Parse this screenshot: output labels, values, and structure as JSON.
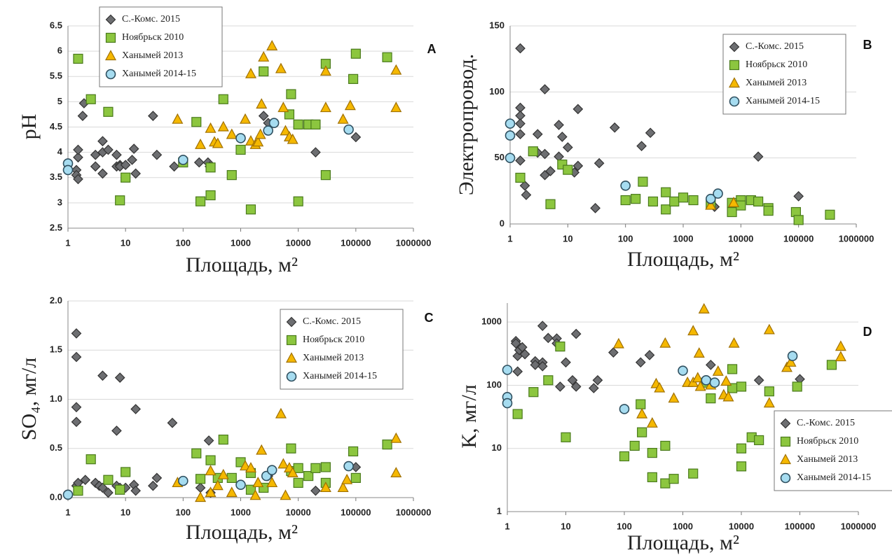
{
  "chart_data": [
    {
      "type": "scatter",
      "panel_label": "A",
      "x_label": "Площадь, м²",
      "y_label": "pH",
      "log_x": true,
      "grid": true,
      "legend": "upper left",
      "xlim": [
        1,
        1000000
      ],
      "xticks": [
        1,
        10,
        100,
        1000,
        10000,
        100000,
        1000000
      ],
      "ylim": [
        2.5,
        6.5
      ],
      "yticks": [
        2.5,
        3,
        3.5,
        4,
        4.5,
        5,
        5.5,
        6,
        6.5
      ],
      "series": [
        {
          "name": "С.-Комс. 2015",
          "color": "#6d6e71",
          "marker": "diamond",
          "x": [
            1.4,
            1.4,
            1.5,
            1.5,
            1.5,
            1.8,
            1.9,
            3,
            3,
            4,
            4,
            4,
            5,
            7,
            7,
            8,
            8,
            10,
            13,
            14,
            15,
            30,
            35,
            70,
            190,
            270,
            290,
            2500,
            3000,
            20000,
            100000
          ],
          "values": [
            3.65,
            3.55,
            3.47,
            3.9,
            4.05,
            4.72,
            4.97,
            3.95,
            3.72,
            4.0,
            4.22,
            3.58,
            4.05,
            3.72,
            3.95,
            3.75,
            3.72,
            3.75,
            3.85,
            4.07,
            3.58,
            4.72,
            3.95,
            3.72,
            3.8,
            3.8,
            3.72,
            4.72,
            4.58,
            4.0,
            4.3
          ]
        },
        {
          "name": "Ноябрьск 2010",
          "color": "#8cc63f",
          "marker": "square",
          "x": [
            1.5,
            2.5,
            5,
            8,
            10,
            100,
            170,
            200,
            300,
            300,
            500,
            700,
            1000,
            1500,
            2500,
            7500,
            7000,
            10000,
            10000,
            15000,
            20000,
            30000,
            30000,
            90000,
            100000,
            350000
          ],
          "values": [
            5.85,
            5.05,
            4.8,
            3.05,
            3.5,
            3.8,
            4.6,
            3.03,
            3.7,
            3.15,
            5.05,
            3.55,
            4.05,
            2.87,
            5.6,
            5.15,
            4.75,
            4.55,
            3.03,
            4.55,
            4.55,
            5.75,
            3.55,
            5.45,
            5.95,
            5.88
          ]
        },
        {
          "name": "Ханымей 2013",
          "color": "#f5b800",
          "marker": "triangle",
          "x": [
            80,
            200,
            300,
            350,
            400,
            500,
            700,
            1200,
            1500,
            1500,
            1800,
            2000,
            2200,
            2300,
            2500,
            3500,
            5000,
            5500,
            6000,
            7000,
            8000,
            30000,
            30000,
            60000,
            80000,
            500000,
            500000
          ],
          "values": [
            4.65,
            4.15,
            4.47,
            4.2,
            4.17,
            4.5,
            4.35,
            4.65,
            5.55,
            4.22,
            4.15,
            4.2,
            4.35,
            4.95,
            5.88,
            6.1,
            5.65,
            4.88,
            4.42,
            4.3,
            4.25,
            5.6,
            4.88,
            4.65,
            4.92,
            5.62,
            4.88
          ]
        },
        {
          "name": "Ханымей 2014-15",
          "color": "#a6dcf0",
          "marker": "circle",
          "x": [
            1,
            1,
            100,
            1000,
            3000,
            3800,
            75000
          ],
          "values": [
            3.78,
            3.65,
            3.85,
            4.28,
            4.43,
            4.58,
            4.45
          ]
        }
      ]
    },
    {
      "type": "scatter",
      "panel_label": "B",
      "x_label": "Площадь, м²",
      "y_label": "Электропровод.",
      "log_x": true,
      "grid": true,
      "legend": "upper right",
      "xlim": [
        1,
        1000000
      ],
      "xticks": [
        1,
        10,
        100,
        1000,
        10000,
        100000,
        1000000
      ],
      "ylim": [
        0,
        150
      ],
      "yticks": [
        0,
        50,
        100,
        150
      ],
      "series": [
        {
          "name": "С.-Комс. 2015",
          "color": "#6d6e71",
          "marker": "diamond",
          "x": [
            1.5,
            1.5,
            1.5,
            1.5,
            1.5,
            1.5,
            1.8,
            1.9,
            3,
            3,
            4,
            4,
            4,
            5,
            7,
            7,
            8,
            10,
            13,
            15,
            15,
            30,
            35,
            65,
            190,
            270,
            3500,
            20000,
            100000
          ],
          "values": [
            133,
            88,
            82,
            76,
            68,
            48,
            29,
            22,
            68,
            54,
            102,
            53,
            37,
            40,
            75,
            51,
            66,
            58,
            39,
            87,
            44,
            12,
            46,
            73,
            59,
            69,
            13,
            51,
            21
          ]
        },
        {
          "name": "Ноябрьск 2010",
          "color": "#8cc63f",
          "marker": "square",
          "x": [
            1.5,
            2.5,
            5,
            8,
            10,
            100,
            150,
            200,
            300,
            500,
            500,
            700,
            1000,
            1500,
            3000,
            7000,
            7000,
            10000,
            10000,
            15000,
            20000,
            30000,
            30000,
            90000,
            100000,
            350000
          ],
          "values": [
            35,
            55,
            15,
            45,
            41,
            18,
            19,
            32,
            17,
            24,
            11,
            17,
            20,
            18,
            15,
            16,
            9,
            18,
            14,
            18,
            17,
            12,
            10,
            9,
            3,
            7
          ]
        },
        {
          "name": "Ханымей 2013",
          "color": "#f5b800",
          "marker": "triangle",
          "x": [
            3000,
            7500
          ],
          "values": [
            14,
            16
          ]
        },
        {
          "name": "Ханымей 2014-15",
          "color": "#a6dcf0",
          "marker": "circle",
          "x": [
            1,
            1,
            1,
            100,
            3000,
            4000
          ],
          "values": [
            76,
            67,
            50,
            29,
            19,
            23
          ]
        }
      ]
    },
    {
      "type": "scatter",
      "panel_label": "C",
      "x_label": "Площадь, м²",
      "y_label": "SO₄, мг/л",
      "log_x": true,
      "grid": true,
      "legend": "upper right",
      "xlim": [
        1,
        1000000
      ],
      "xticks": [
        1,
        10,
        100,
        1000,
        10000,
        100000,
        1000000
      ],
      "ylim": [
        0,
        2
      ],
      "yticks": [
        {
          "value": 0,
          "label": "0.0"
        },
        0.5,
        {
          "value": 1,
          "label": "1.0"
        },
        1.5,
        {
          "value": 2,
          "label": "2.0"
        }
      ],
      "series": [
        {
          "name": "С.-Комс. 2015",
          "color": "#6d6e71",
          "marker": "diamond",
          "x": [
            1.4,
            1.4,
            1.4,
            1.4,
            1.4,
            1.5,
            2,
            3,
            3.5,
            4,
            4,
            5,
            7,
            7,
            8,
            8,
            10,
            14,
            15,
            15,
            30,
            35,
            65,
            200,
            280,
            300,
            3000,
            20000,
            100000
          ],
          "values": [
            1.67,
            1.43,
            0.92,
            0.77,
            0.12,
            0.15,
            0.18,
            0.15,
            0.12,
            1.24,
            0.1,
            0.05,
            0.68,
            0.12,
            1.22,
            0.1,
            0.1,
            0.13,
            0.9,
            0.07,
            0.12,
            0.2,
            0.76,
            0.1,
            0.58,
            0.05,
            0.22,
            0.07,
            0.31
          ]
        },
        {
          "name": "Ноябрьск 2010",
          "color": "#8cc63f",
          "marker": "square",
          "x": [
            1.5,
            2.5,
            5,
            8,
            10,
            170,
            200,
            300,
            400,
            500,
            700,
            1000,
            1500,
            1500,
            2500,
            7500,
            7500,
            10000,
            10000,
            15000,
            20000,
            30000,
            30000,
            90000,
            100000,
            350000
          ],
          "values": [
            0.07,
            0.39,
            0.18,
            0.08,
            0.26,
            0.45,
            0.19,
            0.38,
            0.2,
            0.59,
            0.2,
            0.36,
            0.08,
            0.25,
            0.1,
            0.5,
            0.27,
            0.3,
            0.15,
            0.22,
            0.3,
            0.31,
            0.15,
            0.47,
            0.2,
            0.54
          ]
        },
        {
          "name": "Ханымей 2013",
          "color": "#f5b800",
          "marker": "triangle",
          "x": [
            80,
            200,
            300,
            300,
            400,
            500,
            700,
            1200,
            1500,
            1800,
            2000,
            2300,
            3500,
            5000,
            5500,
            6000,
            7000,
            8000,
            30000,
            60000,
            70000,
            500000,
            500000
          ],
          "values": [
            0.15,
            0.0,
            0.27,
            0.05,
            0.12,
            0.23,
            0.05,
            0.32,
            0.3,
            0.02,
            0.15,
            0.48,
            0.15,
            0.85,
            0.34,
            0.02,
            0.3,
            0.25,
            0.1,
            0.1,
            0.18,
            0.6,
            0.25
          ]
        },
        {
          "name": "Ханымей 2014-15",
          "color": "#a6dcf0",
          "marker": "circle",
          "x": [
            1,
            100,
            1000,
            2800,
            3500,
            75000
          ],
          "values": [
            0.03,
            0.17,
            0.13,
            0.22,
            0.28,
            0.32
          ]
        }
      ]
    },
    {
      "type": "scatter",
      "panel_label": "D",
      "x_label": "Площадь, м²",
      "y_label": "K, мг/л",
      "log_x": true,
      "log_y": true,
      "grid": true,
      "legend": "lower right",
      "xlim": [
        1,
        1000000
      ],
      "xticks": [
        1,
        10,
        100,
        1000,
        10000,
        100000,
        1000000
      ],
      "ylim": [
        1,
        2000
      ],
      "yticks": [
        1,
        10,
        100,
        1000
      ],
      "series": [
        {
          "name": "С.-Комс. 2015",
          "color": "#6d6e71",
          "marker": "diamond",
          "x": [
            1.4,
            1.4,
            1.5,
            1.5,
            1.6,
            1.8,
            2,
            3,
            3,
            4,
            4,
            4,
            5,
            7,
            7,
            8,
            10,
            13,
            15,
            15,
            30,
            35,
            65,
            190,
            270,
            3000,
            3500,
            20000,
            100000
          ],
          "values": [
            500,
            460,
            290,
            165,
            360,
            400,
            310,
            240,
            210,
            870,
            230,
            200,
            560,
            550,
            460,
            95,
            230,
            120,
            95,
            650,
            90,
            120,
            330,
            230,
            300,
            210,
            110,
            120,
            125
          ]
        },
        {
          "name": "Ноябрьск 2010",
          "color": "#8cc63f",
          "marker": "square",
          "x": [
            1.5,
            2.8,
            5,
            8,
            10,
            100,
            150,
            190,
            200,
            300,
            300,
            500,
            500,
            700,
            1500,
            2500,
            3000,
            7000,
            7000,
            10000,
            10000,
            10000,
            15000,
            20000,
            30000,
            90000,
            350000
          ],
          "values": [
            35,
            78,
            120,
            410,
            15,
            7.5,
            11,
            50,
            18,
            8.5,
            3.5,
            2.8,
            11,
            3.3,
            4,
            110,
            62,
            180,
            90,
            95,
            10,
            5.2,
            15,
            13.5,
            80,
            95,
            210
          ]
        },
        {
          "name": "Ханымей 2013",
          "color": "#f5b800",
          "marker": "triangle",
          "x": [
            80,
            200,
            300,
            350,
            400,
            500,
            700,
            1200,
            1500,
            1500,
            1800,
            1900,
            2000,
            2300,
            3000,
            4000,
            5000,
            5500,
            6000,
            7500,
            30000,
            30000,
            60000,
            70000,
            500000,
            500000
          ],
          "values": [
            450,
            35,
            25,
            105,
            90,
            460,
            62,
            110,
            720,
            110,
            130,
            320,
            95,
            1600,
            100,
            165,
            70,
            115,
            65,
            460,
            750,
            52,
            190,
            230,
            410,
            280
          ]
        },
        {
          "name": "Ханымей 2014-15",
          "color": "#a6dcf0",
          "marker": "circle",
          "x": [
            1,
            1,
            1,
            100,
            1000,
            2500,
            3500,
            75000
          ],
          "values": [
            175,
            65,
            52,
            42,
            170,
            120,
            110,
            290
          ]
        }
      ]
    }
  ]
}
